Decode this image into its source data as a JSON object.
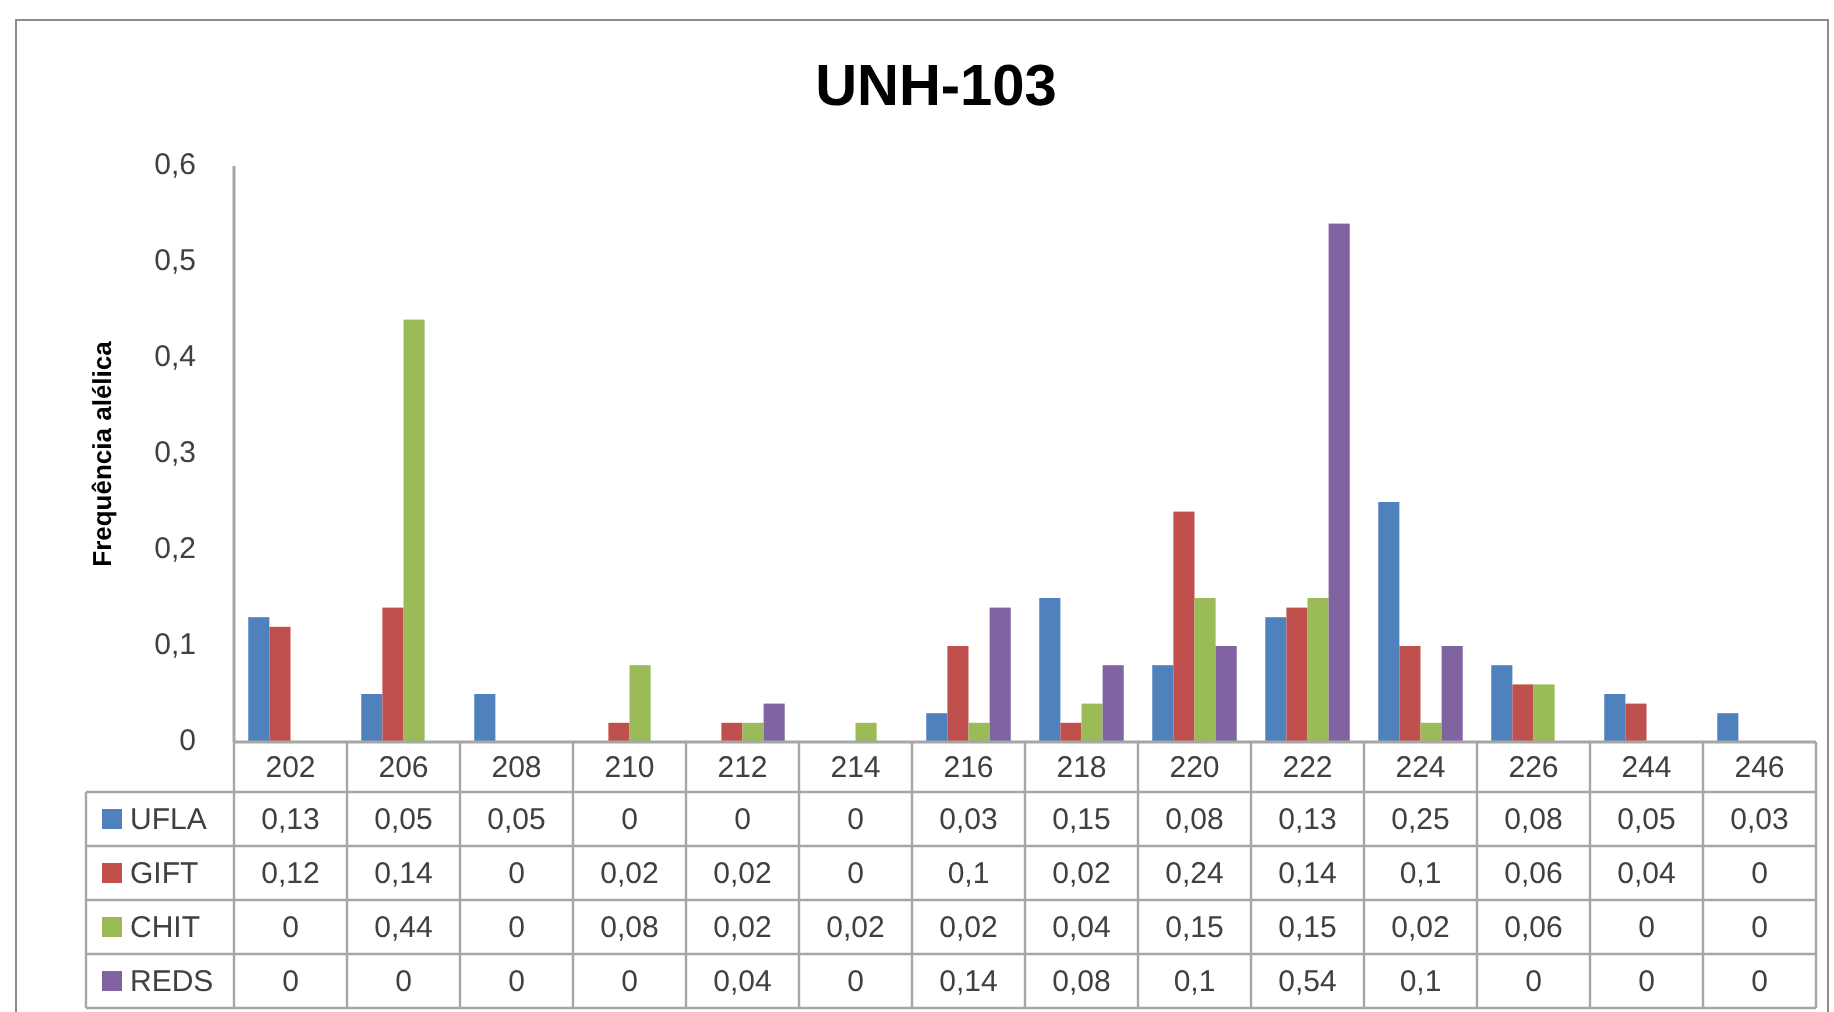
{
  "chart_data": {
    "type": "bar",
    "title": "UNH-103",
    "ylabel": "Frequência alélica",
    "categories": [
      "202",
      "206",
      "208",
      "210",
      "212",
      "214",
      "216",
      "218",
      "220",
      "222",
      "224",
      "226",
      "244",
      "246"
    ],
    "series": [
      {
        "name": "UFLA",
        "color": "#4f81bd",
        "values": [
          0.13,
          0.05,
          0.05,
          0,
          0,
          0,
          0.03,
          0.15,
          0.08,
          0.13,
          0.25,
          0.08,
          0.05,
          0.03
        ],
        "value_labels": [
          "0,13",
          "0,05",
          "0,05",
          "0",
          "0",
          "0",
          "0,03",
          "0,15",
          "0,08",
          "0,13",
          "0,25",
          "0,08",
          "0,05",
          "0,03"
        ]
      },
      {
        "name": "GIFT",
        "color": "#c0504d",
        "values": [
          0.12,
          0.14,
          0,
          0.02,
          0.02,
          0,
          0.1,
          0.02,
          0.24,
          0.14,
          0.1,
          0.06,
          0.04,
          0
        ],
        "value_labels": [
          "0,12",
          "0,14",
          "0",
          "0,02",
          "0,02",
          "0",
          "0,1",
          "0,02",
          "0,24",
          "0,14",
          "0,1",
          "0,06",
          "0,04",
          "0"
        ]
      },
      {
        "name": "CHIT",
        "color": "#9bbb59",
        "values": [
          0,
          0.44,
          0,
          0.08,
          0.02,
          0.02,
          0.02,
          0.04,
          0.15,
          0.15,
          0.02,
          0.06,
          0,
          0
        ],
        "value_labels": [
          "0",
          "0,44",
          "0",
          "0,08",
          "0,02",
          "0,02",
          "0,02",
          "0,04",
          "0,15",
          "0,15",
          "0,02",
          "0,06",
          "0",
          "0"
        ]
      },
      {
        "name": "REDS",
        "color": "#8064a2",
        "values": [
          0,
          0,
          0,
          0,
          0.04,
          0,
          0.14,
          0.08,
          0.1,
          0.54,
          0.1,
          0,
          0,
          0
        ],
        "value_labels": [
          "0",
          "0",
          "0",
          "0",
          "0,04",
          "0",
          "0,14",
          "0,08",
          "0,1",
          "0,54",
          "0,1",
          "0",
          "0",
          "0"
        ]
      }
    ],
    "ylim": [
      0,
      0.6
    ],
    "yticks": [
      0,
      {
        "value": 0.1,
        "label": "0,1"
      },
      {
        "value": 0.2,
        "label": "0,2"
      },
      {
        "value": 0.3,
        "label": "0,3"
      },
      {
        "value": 0.4,
        "label": "0,4"
      },
      {
        "value": 0.5,
        "label": "0,5"
      },
      {
        "value": 0.6,
        "label": "0,6"
      }
    ],
    "legend": "bottom left"
  }
}
